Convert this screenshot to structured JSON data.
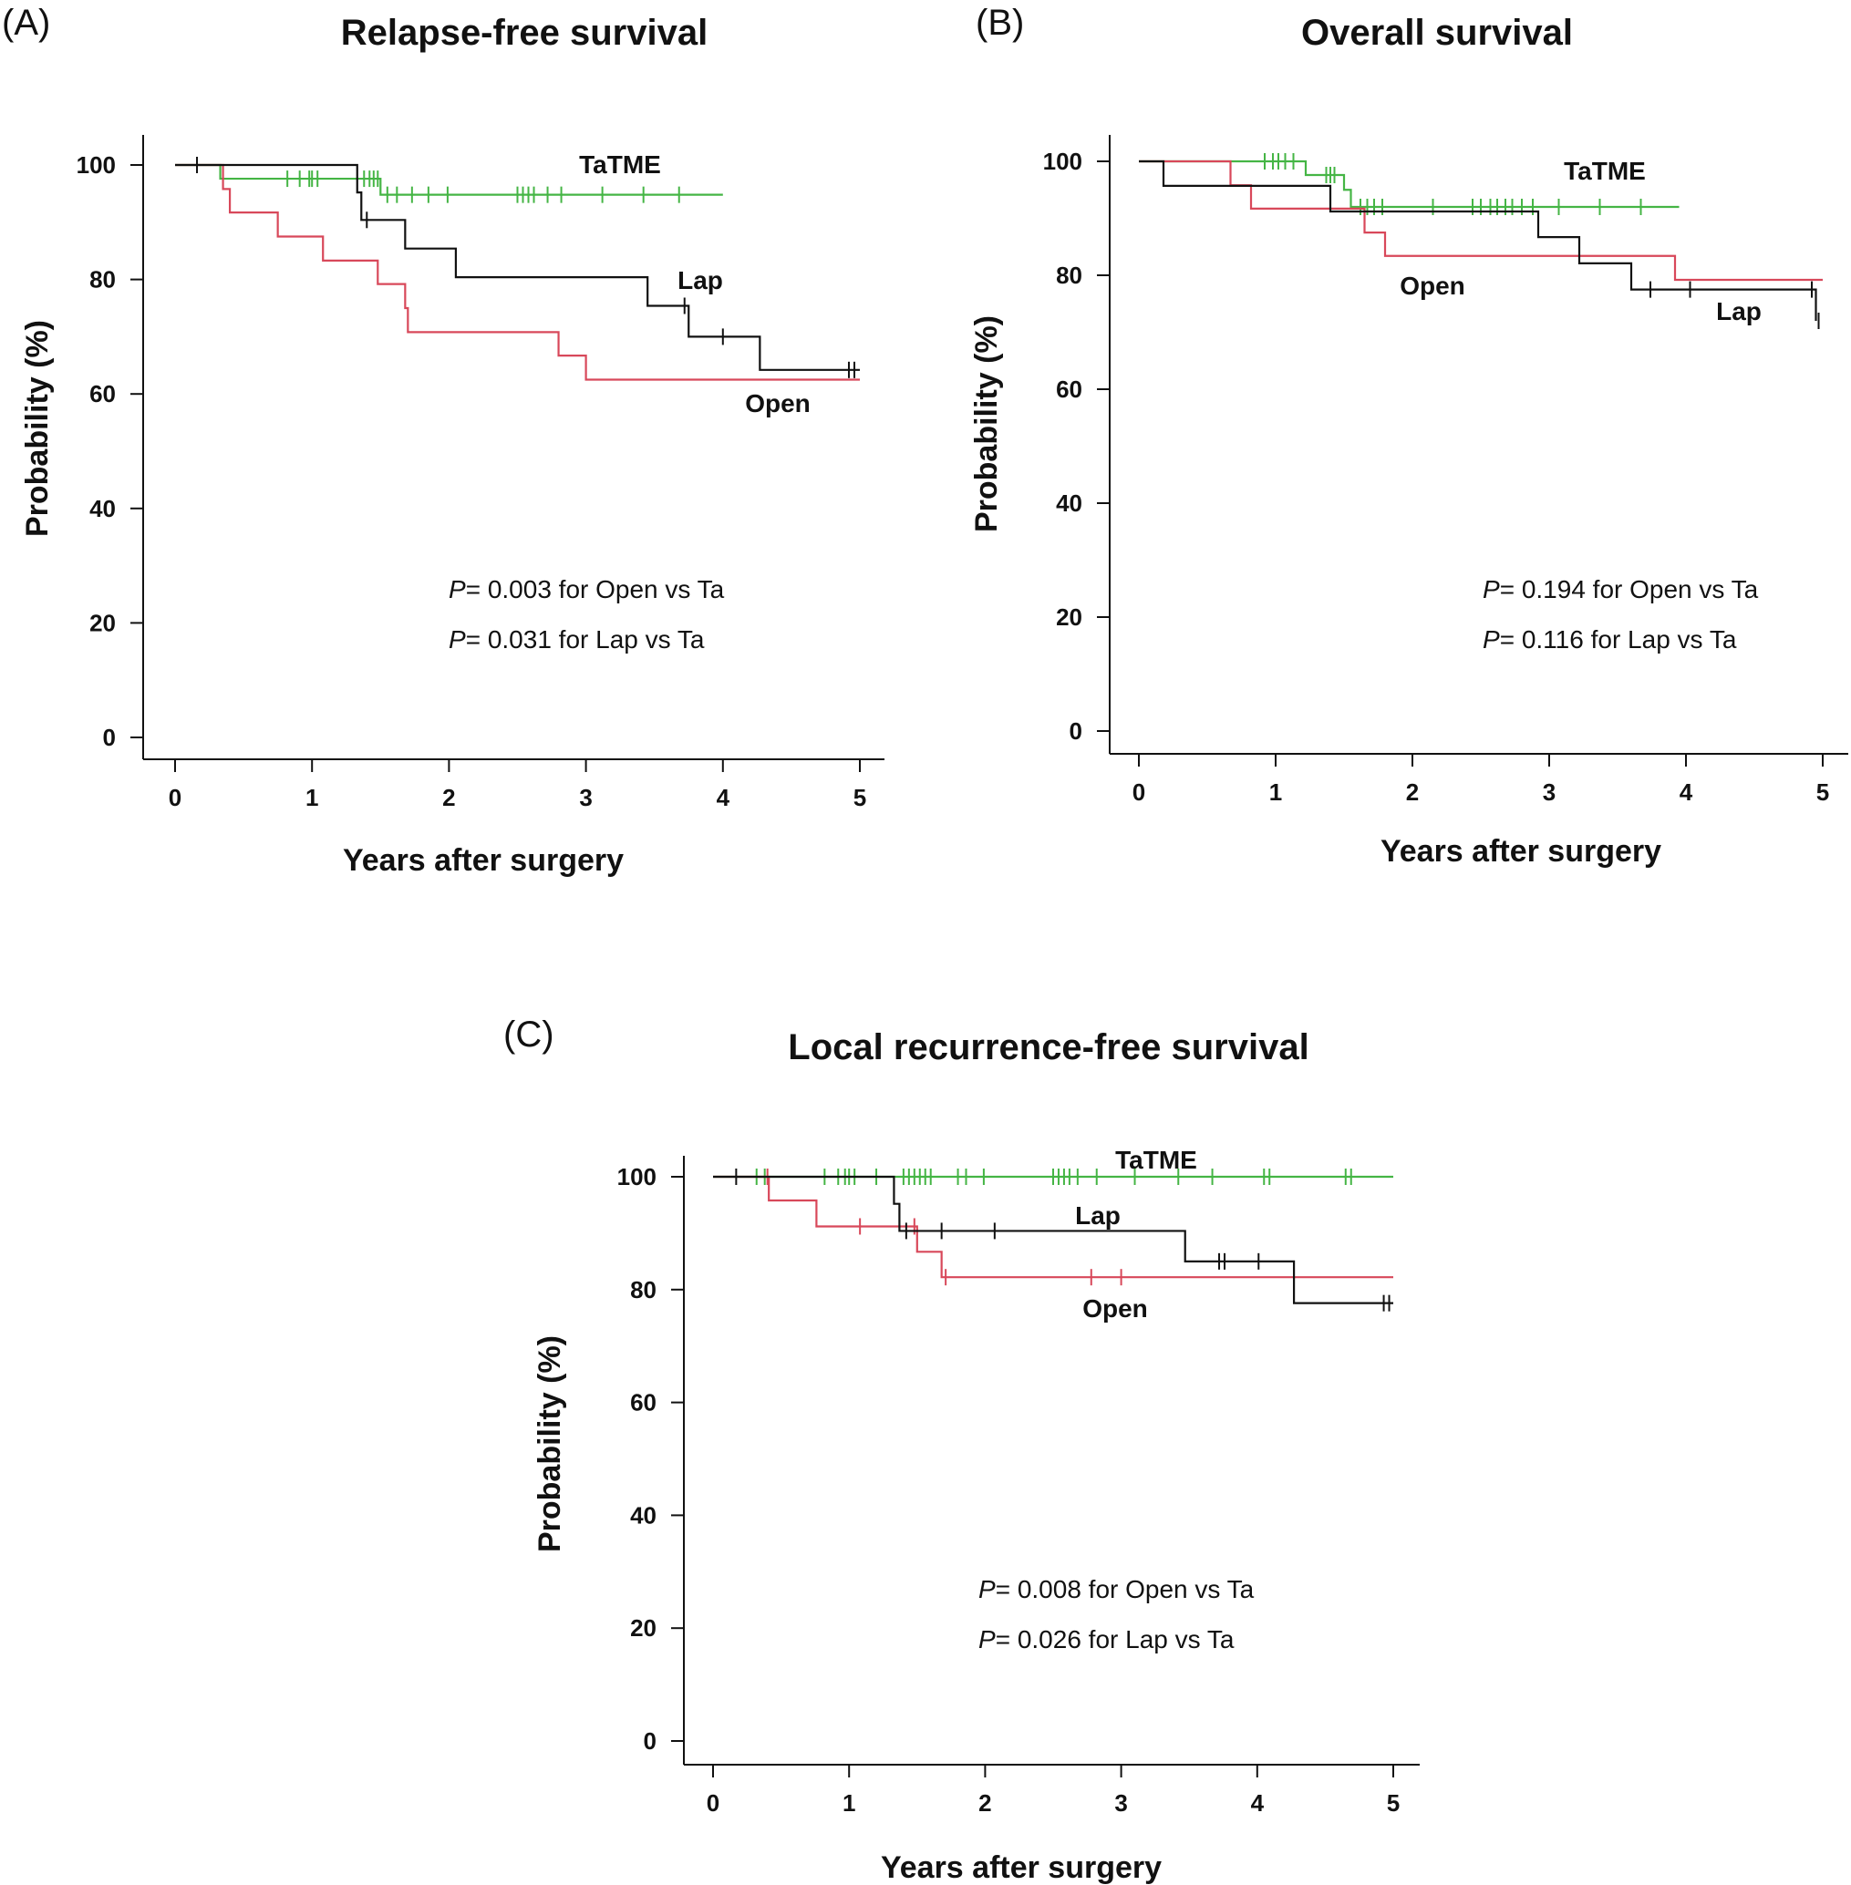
{
  "colors": {
    "Open": "#d8485a",
    "Lap": "#111111",
    "TaTME": "#45b545"
  },
  "chart_data": [
    {
      "type": "line",
      "subtype": "kaplan-meier",
      "letter": "(A)",
      "title": "Relapse-free survival",
      "xlabel": "Years after surgery",
      "ylabel": "Probability (%)",
      "xlim": [
        0,
        5
      ],
      "ylim": [
        0,
        100
      ],
      "xticks": [
        "0",
        "1",
        "2",
        "3",
        "4",
        "5"
      ],
      "yticks": [
        "0",
        "20",
        "40",
        "60",
        "80",
        "100"
      ],
      "labels": [
        {
          "series": "TaTME",
          "text": "TaTME"
        },
        {
          "series": "Lap",
          "text": "Lap"
        },
        {
          "series": "Open",
          "text": "Open"
        }
      ],
      "pvalues": [
        {
          "prefix": "P",
          "text": "= 0.003 for Open vs Ta"
        },
        {
          "prefix": "P",
          "text": "= 0.031 for Lap vs Ta"
        }
      ],
      "series": [
        {
          "name": "TaTME",
          "end": 4.0,
          "steps": [
            [
              0,
              100
            ],
            [
              0.33,
              97.6
            ],
            [
              1.5,
              94.8
            ]
          ],
          "censor": [
            0.82,
            0.91,
            0.98,
            1.0,
            1.04,
            1.38,
            1.42,
            1.45,
            1.48,
            1.55,
            1.62,
            1.73,
            1.85,
            1.99,
            2.5,
            2.54,
            2.58,
            2.62,
            2.72,
            2.82,
            3.12,
            3.42,
            3.68
          ]
        },
        {
          "name": "Lap",
          "end": 5.0,
          "steps": [
            [
              0,
              100
            ],
            [
              1.33,
              95.2
            ],
            [
              1.36,
              90.4
            ],
            [
              1.68,
              85.4
            ],
            [
              2.05,
              80.4
            ],
            [
              3.45,
              75.4
            ],
            [
              3.75,
              70.0
            ],
            [
              4.27,
              64.2
            ]
          ],
          "censor": [
            0.16,
            1.4,
            3.72,
            4.0,
            4.92,
            4.96
          ]
        },
        {
          "name": "Open",
          "end": 5.0,
          "steps": [
            [
              0,
              100
            ],
            [
              0.35,
              95.8
            ],
            [
              0.4,
              91.7
            ],
            [
              0.75,
              87.5
            ],
            [
              1.08,
              83.3
            ],
            [
              1.48,
              79.2
            ],
            [
              1.68,
              75.0
            ],
            [
              1.7,
              70.8
            ],
            [
              2.8,
              66.7
            ],
            [
              3.0,
              62.5
            ]
          ],
          "censor": []
        }
      ]
    },
    {
      "type": "line",
      "subtype": "kaplan-meier",
      "letter": "(B)",
      "title": "Overall survival",
      "xlabel": "Years after surgery",
      "ylabel": "Probability (%)",
      "xlim": [
        0,
        5
      ],
      "ylim": [
        0,
        100
      ],
      "xticks": [
        "0",
        "1",
        "2",
        "3",
        "4",
        "5"
      ],
      "yticks": [
        "0",
        "20",
        "40",
        "60",
        "80",
        "100"
      ],
      "labels": [
        {
          "series": "TaTME",
          "text": "TaTME"
        },
        {
          "series": "Open",
          "text": "Open"
        },
        {
          "series": "Lap",
          "text": "Lap"
        }
      ],
      "pvalues": [
        {
          "prefix": "P",
          "text": "= 0.194 for Open vs Ta"
        },
        {
          "prefix": "P",
          "text": "= 0.116 for Lap vs Ta"
        }
      ],
      "series": [
        {
          "name": "TaTME",
          "end": 3.95,
          "steps": [
            [
              0,
              100
            ],
            [
              1.22,
              97.6
            ],
            [
              1.5,
              95.0
            ],
            [
              1.55,
              92.0
            ]
          ],
          "censor": [
            0.92,
            0.98,
            1.02,
            1.07,
            1.13,
            1.37,
            1.4,
            1.43,
            1.62,
            1.67,
            1.72,
            1.78,
            2.15,
            2.44,
            2.5,
            2.57,
            2.62,
            2.68,
            2.73,
            2.8,
            2.88,
            3.07,
            3.37,
            3.67
          ]
        },
        {
          "name": "Lap",
          "end": 4.95,
          "steps": [
            [
              0,
              100
            ],
            [
              0.18,
              95.7
            ],
            [
              1.4,
              91.2
            ],
            [
              2.92,
              86.7
            ],
            [
              3.22,
              82.1
            ],
            [
              3.6,
              77.5
            ],
            [
              4.95,
              72.0
            ]
          ],
          "censor": [
            3.74,
            4.03,
            4.92,
            4.97
          ]
        },
        {
          "name": "Open",
          "end": 5.0,
          "steps": [
            [
              0,
              100
            ],
            [
              0.67,
              95.8
            ],
            [
              0.82,
              91.7
            ],
            [
              1.65,
              87.5
            ],
            [
              1.8,
              83.4
            ],
            [
              3.92,
              79.2
            ]
          ],
          "censor": []
        }
      ]
    },
    {
      "type": "line",
      "subtype": "kaplan-meier",
      "letter": "(C)",
      "title": "Local recurrence-free survival",
      "xlabel": "Years after surgery",
      "ylabel": "Probability (%)",
      "xlim": [
        0,
        5
      ],
      "ylim": [
        0,
        100
      ],
      "xticks": [
        "0",
        "1",
        "2",
        "3",
        "4",
        "5"
      ],
      "yticks": [
        "0",
        "20",
        "40",
        "60",
        "80",
        "100"
      ],
      "labels": [
        {
          "series": "TaTME",
          "text": "TaTME"
        },
        {
          "series": "Lap",
          "text": "Lap"
        },
        {
          "series": "Open",
          "text": "Open"
        }
      ],
      "pvalues": [
        {
          "prefix": "P",
          "text": "= 0.008 for Open vs Ta"
        },
        {
          "prefix": "P",
          "text": "= 0.026 for Lap vs Ta"
        }
      ],
      "series": [
        {
          "name": "TaTME",
          "end": 5.0,
          "steps": [
            [
              0,
              100
            ]
          ],
          "censor": [
            0.32,
            0.38,
            0.82,
            0.92,
            0.97,
            1.0,
            1.04,
            1.2,
            1.4,
            1.44,
            1.48,
            1.52,
            1.56,
            1.6,
            1.8,
            1.86,
            1.99,
            2.5,
            2.54,
            2.58,
            2.62,
            2.68,
            2.82,
            3.1,
            3.42,
            3.67,
            4.05,
            4.09,
            4.65,
            4.69
          ]
        },
        {
          "name": "Lap",
          "end": 5.0,
          "steps": [
            [
              0,
              100
            ],
            [
              1.33,
              95.2
            ],
            [
              1.37,
              90.4
            ],
            [
              3.47,
              85.0
            ],
            [
              4.27,
              77.6
            ]
          ],
          "censor": [
            0.17,
            1.42,
            1.68,
            2.07,
            3.72,
            3.76,
            4.01,
            4.93,
            4.97
          ]
        },
        {
          "name": "Open",
          "end": 5.0,
          "steps": [
            [
              0,
              100
            ],
            [
              0.41,
              95.8
            ],
            [
              0.76,
              91.2
            ],
            [
              1.5,
              86.7
            ],
            [
              1.68,
              82.2
            ]
          ],
          "censor": [
            0.4,
            1.08,
            1.48,
            1.71,
            2.78,
            3.0
          ]
        }
      ]
    }
  ]
}
